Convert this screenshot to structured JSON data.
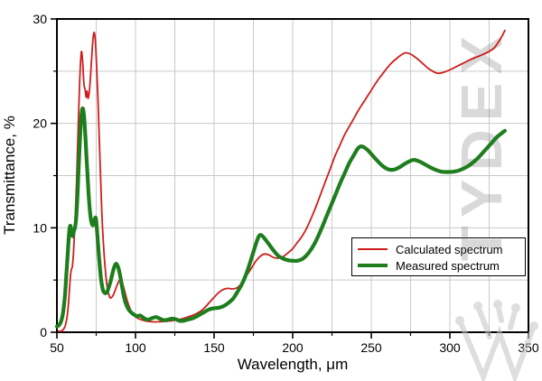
{
  "watermark": {
    "text": "TYDEX"
  },
  "colors": {
    "background": "#ffffff",
    "grid": "#c9c9c9",
    "axis": "#000000",
    "calculated_line": "#cf1d1d",
    "measured_line": "#1e7e1e",
    "watermark_gray": "#d9d9d9"
  },
  "legend": {
    "entries": [
      "Calculated spectrum",
      "Measured spectrum"
    ]
  },
  "chart_data": {
    "type": "line",
    "title": "",
    "xlabel": "Wavelength, μm",
    "ylabel": "Transmittance, %",
    "xlim": [
      50,
      350
    ],
    "ylim": [
      0,
      30
    ],
    "grid": true,
    "legend_position": "inside-bottom-right",
    "x_axis": {
      "major_ticks": [
        50,
        100,
        150,
        200,
        250,
        300,
        350
      ],
      "minor_ticks": [
        75,
        125,
        175,
        225,
        275,
        325
      ]
    },
    "y_axis": {
      "major_ticks": [
        0,
        10,
        20,
        30
      ],
      "minor_ticks": [
        5,
        15,
        25
      ]
    },
    "series": [
      {
        "name": "Calculated spectrum",
        "slug": "calculated-spectrum",
        "color": "#cf1d1d",
        "line_width": 1.8,
        "points": [
          [
            51,
            0.1
          ],
          [
            53,
            0.12
          ],
          [
            55,
            0.5
          ],
          [
            56.5,
            1.5
          ],
          [
            57.5,
            3
          ],
          [
            58.5,
            5.2
          ],
          [
            59.2,
            6
          ],
          [
            59.8,
            6.3
          ],
          [
            60.5,
            7.5
          ],
          [
            61.5,
            10.5
          ],
          [
            62.5,
            14.5
          ],
          [
            63.5,
            19.5
          ],
          [
            64.5,
            24
          ],
          [
            65.5,
            26.8
          ],
          [
            66.3,
            26
          ],
          [
            67.2,
            23.8
          ],
          [
            68,
            23.2
          ],
          [
            68.6,
            22.5
          ],
          [
            69.2,
            23.1
          ],
          [
            69.9,
            22.4
          ],
          [
            70.8,
            23.3
          ],
          [
            71.8,
            25.5
          ],
          [
            72.8,
            27.8
          ],
          [
            73.6,
            28.7
          ],
          [
            74.4,
            28
          ],
          [
            75.2,
            25.8
          ],
          [
            76.2,
            22
          ],
          [
            77.2,
            17.5
          ],
          [
            78.2,
            13
          ],
          [
            79.2,
            9.5
          ],
          [
            80.5,
            6.5
          ],
          [
            82,
            4.3
          ],
          [
            83.5,
            3.4
          ],
          [
            84.5,
            3.3
          ],
          [
            86,
            3.6
          ],
          [
            88,
            4.4
          ],
          [
            89.5,
            4.9
          ],
          [
            90.5,
            5
          ],
          [
            91.5,
            4.8
          ],
          [
            93,
            4
          ],
          [
            95,
            2.9
          ],
          [
            97,
            2.1
          ],
          [
            99,
            1.6
          ],
          [
            102,
            1.3
          ],
          [
            106,
            1.1
          ],
          [
            110,
            1
          ],
          [
            115,
            1
          ],
          [
            120,
            1.05
          ],
          [
            125,
            1.15
          ],
          [
            130,
            1.3
          ],
          [
            135,
            1.55
          ],
          [
            139,
            1.8
          ],
          [
            143,
            2.2
          ],
          [
            147,
            2.85
          ],
          [
            150,
            3.35
          ],
          [
            153,
            3.8
          ],
          [
            156,
            4.1
          ],
          [
            159,
            4.2
          ],
          [
            162,
            4.15
          ],
          [
            165,
            4.3
          ],
          [
            168,
            4.8
          ],
          [
            171,
            5.5
          ],
          [
            174,
            6.2
          ],
          [
            177,
            6.9
          ],
          [
            180,
            7.35
          ],
          [
            182.5,
            7.5
          ],
          [
            185,
            7.4
          ],
          [
            188,
            7.15
          ],
          [
            191,
            7.1
          ],
          [
            194,
            7.25
          ],
          [
            197,
            7.6
          ],
          [
            200,
            8
          ],
          [
            203,
            8.6
          ],
          [
            206,
            9.2
          ],
          [
            209,
            10
          ],
          [
            212,
            11
          ],
          [
            215,
            12.1
          ],
          [
            218,
            13.3
          ],
          [
            221,
            14.5
          ],
          [
            224,
            15.7
          ],
          [
            227,
            16.9
          ],
          [
            230,
            17.9
          ],
          [
            233,
            18.9
          ],
          [
            236,
            19.7
          ],
          [
            239,
            20.5
          ],
          [
            242,
            21.3
          ],
          [
            245,
            22
          ],
          [
            248,
            22.7
          ],
          [
            251,
            23.4
          ],
          [
            254,
            24.1
          ],
          [
            257,
            24.7
          ],
          [
            260,
            25.3
          ],
          [
            263,
            25.8
          ],
          [
            266,
            26.2
          ],
          [
            269,
            26.55
          ],
          [
            271.5,
            26.75
          ],
          [
            274,
            26.7
          ],
          [
            277,
            26.45
          ],
          [
            280,
            26.1
          ],
          [
            283,
            25.7
          ],
          [
            286,
            25.3
          ],
          [
            289,
            25
          ],
          [
            292,
            24.8
          ],
          [
            295,
            24.85
          ],
          [
            298,
            25
          ],
          [
            301,
            25.2
          ],
          [
            305,
            25.5
          ],
          [
            309,
            25.8
          ],
          [
            313,
            26.1
          ],
          [
            317,
            26.35
          ],
          [
            321,
            26.6
          ],
          [
            325,
            26.9
          ],
          [
            328,
            27.2
          ],
          [
            331,
            27.8
          ],
          [
            333,
            28.3
          ],
          [
            335,
            28.9
          ]
        ]
      },
      {
        "name": "Measured spectrum",
        "slug": "measured-spectrum",
        "color": "#1e7e1e",
        "line_width": 4.2,
        "points": [
          [
            50,
            0.55
          ],
          [
            51.5,
            0.7
          ],
          [
            53,
            1.2
          ],
          [
            54,
            2
          ],
          [
            55,
            3.3
          ],
          [
            56,
            5.5
          ],
          [
            57,
            7.8
          ],
          [
            57.8,
            9.6
          ],
          [
            58.5,
            10.2
          ],
          [
            59.3,
            9.7
          ],
          [
            60,
            9.2
          ],
          [
            60.8,
            9.7
          ],
          [
            61.5,
            10
          ],
          [
            62.3,
            11
          ],
          [
            63.2,
            13.5
          ],
          [
            64.2,
            17
          ],
          [
            65.2,
            20
          ],
          [
            66.2,
            21.4
          ],
          [
            67.2,
            20.8
          ],
          [
            68.2,
            18.5
          ],
          [
            69.2,
            15.8
          ],
          [
            70.2,
            13.2
          ],
          [
            71.2,
            11.3
          ],
          [
            72.2,
            10.4
          ],
          [
            73.2,
            10.3
          ],
          [
            74.2,
            10.9
          ],
          [
            74.9,
            10.8
          ],
          [
            75.8,
            9.2
          ],
          [
            76.8,
            7.2
          ],
          [
            78,
            5.2
          ],
          [
            79.2,
            4.1
          ],
          [
            80.5,
            3.75
          ],
          [
            82,
            3.9
          ],
          [
            84,
            4.8
          ],
          [
            86,
            6
          ],
          [
            87.5,
            6.55
          ],
          [
            89,
            6.2
          ],
          [
            90.5,
            5.2
          ],
          [
            92,
            3.9
          ],
          [
            93.5,
            2.9
          ],
          [
            95.5,
            2.2
          ],
          [
            98,
            1.8
          ],
          [
            101,
            1.55
          ],
          [
            103,
            1.6
          ],
          [
            105.5,
            1.35
          ],
          [
            108,
            1.2
          ],
          [
            110.5,
            1.35
          ],
          [
            113,
            1.45
          ],
          [
            115.5,
            1.3
          ],
          [
            118,
            1.15
          ],
          [
            120.5,
            1.2
          ],
          [
            123,
            1.3
          ],
          [
            125.5,
            1.25
          ],
          [
            128,
            1.1
          ],
          [
            130.5,
            1.1
          ],
          [
            133,
            1.2
          ],
          [
            135.5,
            1.3
          ],
          [
            138,
            1.45
          ],
          [
            141,
            1.7
          ],
          [
            144,
            1.95
          ],
          [
            147,
            2.2
          ],
          [
            150,
            2.3
          ],
          [
            153,
            2.35
          ],
          [
            156,
            2.5
          ],
          [
            159,
            2.8
          ],
          [
            162,
            3.2
          ],
          [
            165,
            3.9
          ],
          [
            168,
            4.7
          ],
          [
            171,
            5.8
          ],
          [
            174,
            7.2
          ],
          [
            176.5,
            8.4
          ],
          [
            178.5,
            9.2
          ],
          [
            180,
            9.3
          ],
          [
            182,
            9
          ],
          [
            185,
            8.4
          ],
          [
            188,
            7.8
          ],
          [
            191,
            7.3
          ],
          [
            194,
            7.05
          ],
          [
            197,
            6.9
          ],
          [
            200,
            6.85
          ],
          [
            203,
            6.85
          ],
          [
            206,
            7
          ],
          [
            209,
            7.4
          ],
          [
            212,
            8
          ],
          [
            215,
            8.8
          ],
          [
            218,
            9.8
          ],
          [
            221,
            10.9
          ],
          [
            224,
            12
          ],
          [
            227,
            13.1
          ],
          [
            230,
            14.2
          ],
          [
            233,
            15.2
          ],
          [
            236,
            16.2
          ],
          [
            239,
            17
          ],
          [
            241.5,
            17.6
          ],
          [
            243.5,
            17.8
          ],
          [
            245.5,
            17.7
          ],
          [
            248,
            17.4
          ],
          [
            251,
            16.9
          ],
          [
            254,
            16.4
          ],
          [
            257,
            15.95
          ],
          [
            260,
            15.65
          ],
          [
            262.5,
            15.55
          ],
          [
            265,
            15.6
          ],
          [
            268,
            15.8
          ],
          [
            271,
            16.1
          ],
          [
            274,
            16.35
          ],
          [
            276.5,
            16.5
          ],
          [
            279,
            16.45
          ],
          [
            282,
            16.25
          ],
          [
            285,
            16
          ],
          [
            288,
            15.75
          ],
          [
            291,
            15.55
          ],
          [
            294,
            15.4
          ],
          [
            297,
            15.35
          ],
          [
            300,
            15.35
          ],
          [
            303,
            15.4
          ],
          [
            306,
            15.5
          ],
          [
            309,
            15.7
          ],
          [
            312,
            15.95
          ],
          [
            315,
            16.3
          ],
          [
            318,
            16.7
          ],
          [
            321,
            17.2
          ],
          [
            324,
            17.7
          ],
          [
            327,
            18.2
          ],
          [
            330,
            18.7
          ],
          [
            332.5,
            19
          ],
          [
            335,
            19.3
          ]
        ]
      }
    ]
  }
}
